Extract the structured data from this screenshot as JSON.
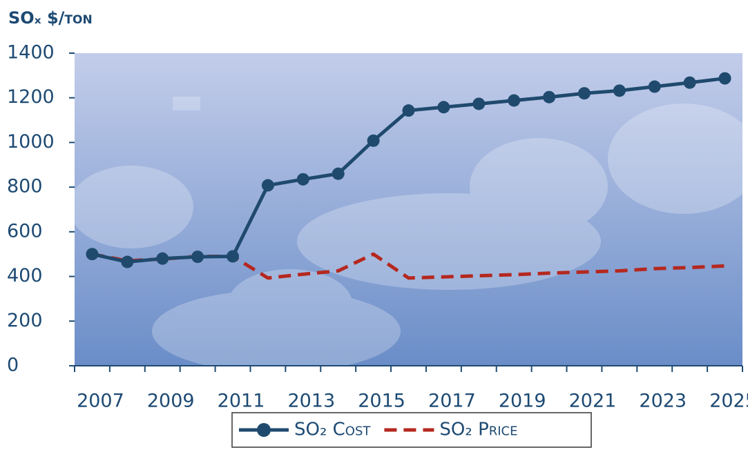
{
  "chart_data": {
    "type": "line",
    "title": "SOₓ $/ton",
    "categories": [
      "2007",
      null,
      "2009",
      null,
      "2011",
      null,
      "2013",
      null,
      "2015",
      null,
      "2017",
      null,
      "2019",
      null,
      "2021",
      null,
      "2023",
      null,
      "2025"
    ],
    "series": [
      {
        "name": "SO₂ Cost",
        "color": "#1f4a6e",
        "style": "solid",
        "marker": true,
        "values": [
          500,
          465,
          480,
          488,
          490,
          808,
          835,
          860,
          1008,
          1143,
          1158,
          1173,
          1188,
          1203,
          1220,
          1232,
          1250,
          1268,
          1287
        ]
      },
      {
        "name": "SO₂ Price",
        "color": "#b5281f",
        "style": "dashed",
        "marker": false,
        "values": [
          500,
          470,
          478,
          490,
          490,
          393,
          410,
          425,
          500,
          393,
          398,
          403,
          408,
          415,
          420,
          425,
          435,
          440,
          447
        ]
      }
    ],
    "ylim": [
      0,
      1400
    ],
    "yticks": [
      0,
      200,
      400,
      600,
      800,
      1000,
      1200,
      1400
    ],
    "legend": "bottom"
  }
}
